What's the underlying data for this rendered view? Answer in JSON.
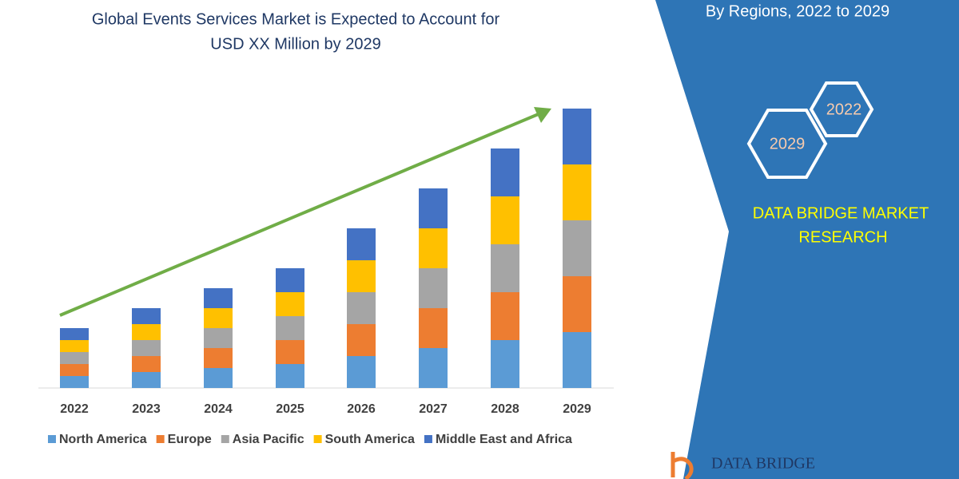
{
  "chart_data": {
    "type": "stacked-bar",
    "title": [
      "Global Events Services Market is Expected to Account for",
      "USD XX Million by 2029"
    ],
    "categories": [
      "2022",
      "2023",
      "2024",
      "2025",
      "2026",
      "2027",
      "2028",
      "2029"
    ],
    "series": [
      {
        "name": "North America",
        "color": "#5b9bd5",
        "values": [
          15,
          20,
          25,
          30,
          40,
          50,
          60,
          70
        ]
      },
      {
        "name": "Europe",
        "color": "#ed7d31",
        "values": [
          15,
          20,
          25,
          30,
          40,
          50,
          60,
          70
        ]
      },
      {
        "name": "Asia Pacific",
        "color": "#a5a5a5",
        "values": [
          15,
          20,
          25,
          30,
          40,
          50,
          60,
          70
        ]
      },
      {
        "name": "South America",
        "color": "#ffc000",
        "values": [
          15,
          20,
          25,
          30,
          40,
          50,
          60,
          70
        ]
      },
      {
        "name": "Middle East and Africa",
        "color": "#4472c4",
        "values": [
          15,
          20,
          25,
          30,
          40,
          50,
          60,
          70
        ]
      }
    ],
    "annotations": [
      "By Regions, 2022 to 2029",
      "2022",
      "2029",
      "DATA BRIDGE MARKET",
      "RESEARCH",
      "DATA BRIDGE"
    ]
  }
}
